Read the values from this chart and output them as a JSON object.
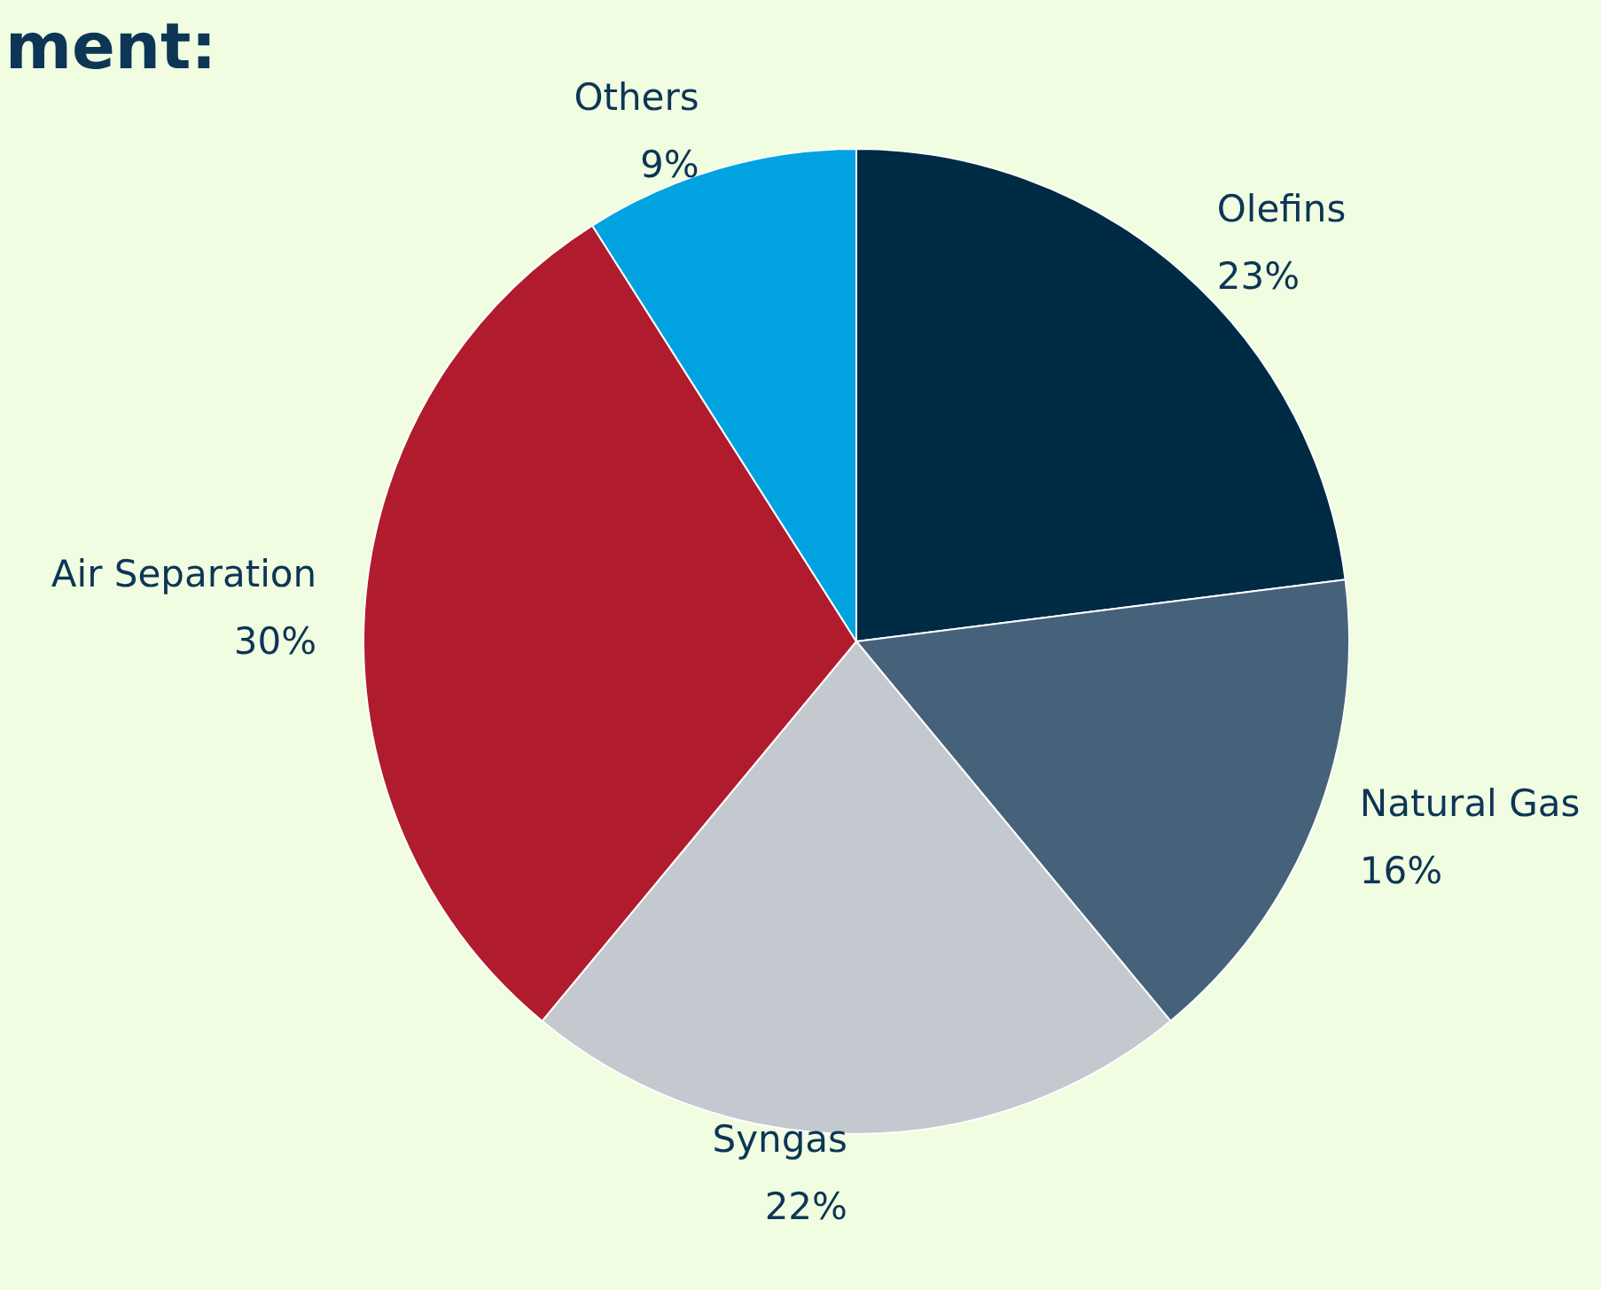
{
  "chart_data": {
    "type": "pie",
    "title": "ment:",
    "categories": [
      "Olefins",
      "Natural Gas",
      "Syngas",
      "Air Separation",
      "Others"
    ],
    "values": [
      23,
      16,
      22,
      30,
      9
    ],
    "colors": [
      "#002b45",
      "#46627a",
      "#c4c9cf",
      "#b01c2e",
      "#00a3e0"
    ],
    "value_labels": [
      "23%",
      "16%",
      "22%",
      "30%",
      "9%"
    ]
  }
}
